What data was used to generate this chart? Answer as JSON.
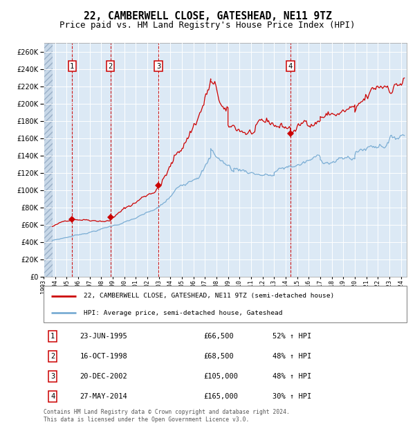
{
  "title": "22, CAMBERWELL CLOSE, GATESHEAD, NE11 9TZ",
  "subtitle": "Price paid vs. HM Land Registry's House Price Index (HPI)",
  "title_fontsize": 10.5,
  "subtitle_fontsize": 9,
  "ylim": [
    0,
    270000
  ],
  "ytick_step": 20000,
  "background_color": "#ffffff",
  "plot_bg_color": "#dce9f5",
  "grid_color": "#ffffff",
  "red_line_color": "#cc0000",
  "blue_line_color": "#7aadd4",
  "transactions": [
    {
      "label": "1",
      "date_num": 1995.48,
      "price": 66500
    },
    {
      "label": "2",
      "date_num": 1998.79,
      "price": 68500
    },
    {
      "label": "3",
      "date_num": 2002.97,
      "price": 105000
    },
    {
      "label": "4",
      "date_num": 2014.41,
      "price": 165000
    }
  ],
  "legend_entries": [
    "22, CAMBERWELL CLOSE, GATESHEAD, NE11 9TZ (semi-detached house)",
    "HPI: Average price, semi-detached house, Gateshead"
  ],
  "table_rows": [
    {
      "num": "1",
      "date": "23-JUN-1995",
      "price": "£66,500",
      "hpi": "52% ↑ HPI"
    },
    {
      "num": "2",
      "date": "16-OCT-1998",
      "price": "£68,500",
      "hpi": "48% ↑ HPI"
    },
    {
      "num": "3",
      "date": "20-DEC-2002",
      "price": "£105,000",
      "hpi": "48% ↑ HPI"
    },
    {
      "num": "4",
      "date": "27-MAY-2014",
      "price": "£165,000",
      "hpi": "30% ↑ HPI"
    }
  ],
  "footer": "Contains HM Land Registry data © Crown copyright and database right 2024.\nThis data is licensed under the Open Government Licence v3.0.",
  "xmin": 1993.0,
  "xmax": 2024.5,
  "hatch_end": 1993.75
}
